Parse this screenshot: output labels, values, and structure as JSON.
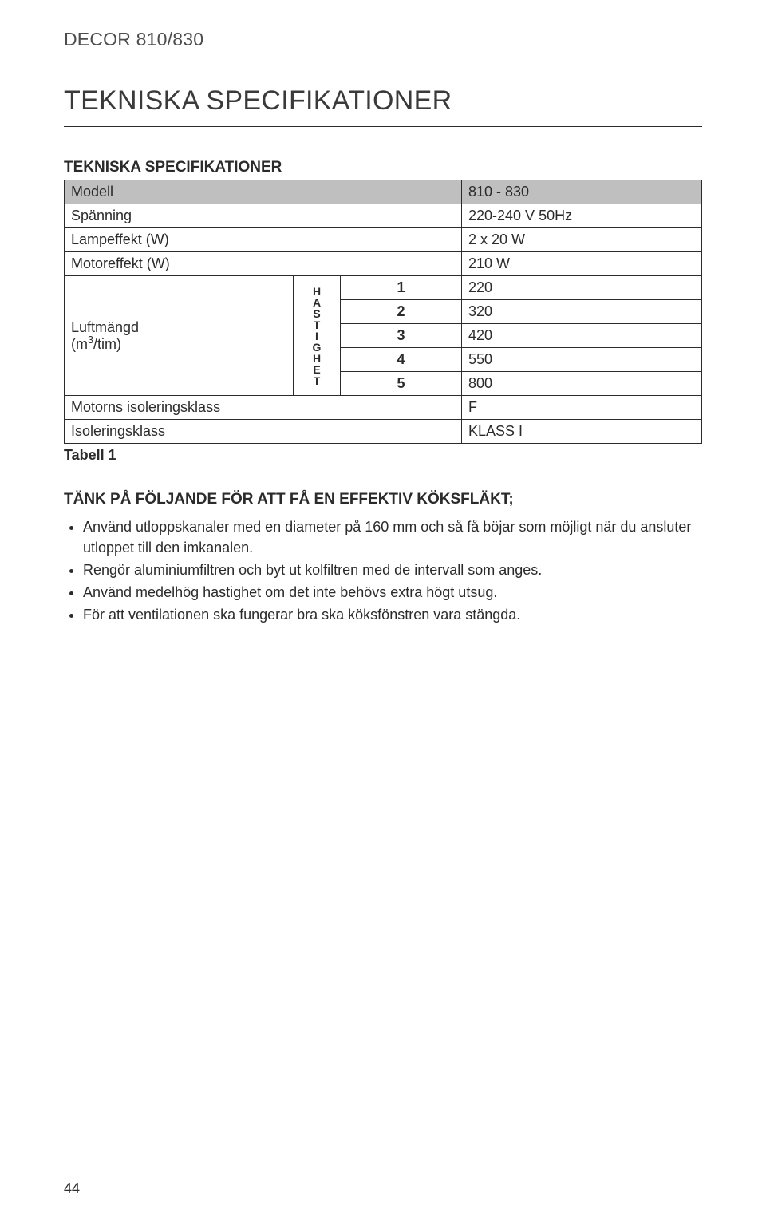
{
  "header": "DECOR 810/830",
  "title": "TEKNISKA SPECIFIKATIONER",
  "subhead": "TEKNISKA SPECIFIKATIONER",
  "table": {
    "caption": "Tabell 1",
    "rows": {
      "model": {
        "label": "Modell",
        "value": "810 - 830"
      },
      "voltage": {
        "label": "Spänning",
        "value": "220-240 V 50Hz"
      },
      "lamp": {
        "label": "Lampeffekt (W)",
        "value": "2 x 20 W"
      },
      "motor": {
        "label": "Motoreffekt (W)",
        "value": "210 W"
      },
      "airflow_label_line1": "Luftmängd",
      "airflow_label_line2": "(m",
      "airflow_label_exp": "3",
      "airflow_label_line3": "/tim)",
      "speed_word_chars": [
        "H",
        "A",
        "S",
        "T",
        "I",
        "G",
        "H",
        "E",
        "T"
      ],
      "speeds": [
        {
          "idx": "1",
          "val": "220"
        },
        {
          "idx": "2",
          "val": "320"
        },
        {
          "idx": "3",
          "val": "420"
        },
        {
          "idx": "4",
          "val": "550"
        },
        {
          "idx": "5",
          "val": "800"
        }
      ],
      "motor_class": {
        "label": "Motorns isoleringsklass",
        "value": "F"
      },
      "iso_class": {
        "label": "Isoleringsklass",
        "value": "KLASS I"
      }
    }
  },
  "tips": {
    "head": "TÄNK PÅ FÖLJANDE FÖR ATT FÅ EN EFFEKTIV KÖKSFLÄKT;",
    "items": [
      "Använd utloppskanaler med en diameter på 160 mm och så få böjar som möjligt när du ansluter utloppet till den imkanalen.",
      "Rengör aluminiumfiltren och byt ut kolfiltren med de intervall som anges.",
      "Använd medelhög hastighet om det inte behövs extra högt utsug.",
      "För att ventilationen ska fungerar bra ska köksfönstren vara stängda."
    ]
  },
  "page_number": "44",
  "colors": {
    "shade": "#bfbfbf",
    "text": "#2b2b2b",
    "header_text": "#4d4d4d",
    "border": "#2b2b2b",
    "background": "#ffffff"
  }
}
